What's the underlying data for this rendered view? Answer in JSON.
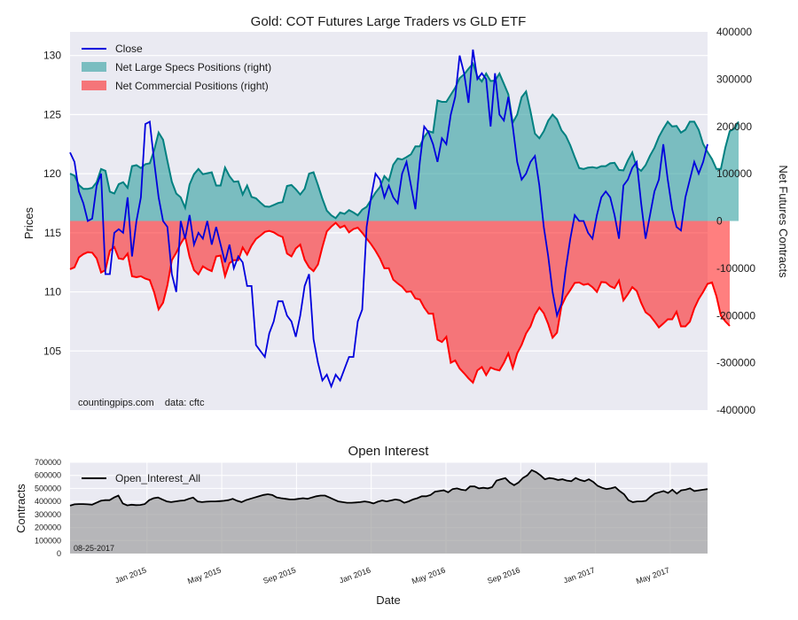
{
  "chart_data": [
    {
      "type": "line",
      "title": "Gold: COT Futures Large Traders vs GLD ETF",
      "ylabel": "Prices",
      "y2label": "Net Futures Contracts",
      "ylim": [
        100,
        132
      ],
      "y2lim": [
        -400000,
        400000
      ],
      "yticks": [
        105,
        110,
        115,
        120,
        125,
        130
      ],
      "y2ticks": [
        400000,
        300000,
        200000,
        100000,
        0,
        -100000,
        -200000,
        -300000,
        -400000
      ],
      "y2tick_labels": [
        "400000",
        "300000",
        "200000",
        "100000",
        "0",
        "-100000",
        "-200000",
        "-300000",
        "-400000"
      ],
      "legend_position": "top-left",
      "annotation": "countingpips.com    data: cftc",
      "series": [
        {
          "name": "Close",
          "color": "#0000dd",
          "axis": "left",
          "values": [
            121.8,
            121.0,
            118.5,
            117.5,
            116.0,
            116.2,
            119.0,
            120.0,
            111.5,
            111.5,
            115.0,
            115.3,
            115.0,
            118.0,
            113.0,
            116.0,
            118.0,
            124.2,
            124.4,
            121.0,
            118.0,
            116.0,
            115.5,
            111.5,
            110.0,
            116.0,
            114.5,
            116.5,
            114.0,
            115.0,
            114.5,
            116.0,
            114.0,
            115.5,
            114.0,
            112.5,
            114.0,
            112.0,
            113.0,
            112.5,
            110.5,
            110.5,
            105.5,
            105.0,
            104.5,
            106.5,
            107.5,
            109.2,
            109.2,
            108.0,
            107.5,
            106.2,
            108.0,
            110.5,
            111.5,
            106.0,
            104.0,
            102.5,
            103.0,
            102.0,
            103.0,
            102.5,
            103.5,
            104.5,
            104.5,
            107.5,
            108.5,
            115.5,
            118.0,
            120.0,
            119.5,
            118.0,
            119.0,
            118.0,
            117.5,
            120.0,
            121.0,
            119.0,
            117.0,
            121.0,
            124.0,
            123.5,
            122.5,
            121.0,
            123.0,
            122.5,
            125.0,
            126.5,
            130.0,
            128.5,
            126.0,
            130.5,
            128.0,
            128.5,
            128.0,
            124.0,
            128.5,
            125.0,
            124.5,
            126.5,
            124.0,
            121.0,
            119.5,
            120.0,
            121.0,
            121.5,
            119.0,
            115.5,
            113.0,
            110.0,
            108.0,
            109.0,
            112.0,
            114.5,
            116.5,
            116.0,
            116.0,
            115.0,
            114.5,
            116.5,
            118.0,
            118.5,
            118.0,
            116.5,
            114.5,
            119.0,
            119.5,
            120.5,
            121.0,
            117.5,
            114.5,
            116.5,
            118.5,
            119.5,
            122.5,
            119.5,
            117.0,
            115.5,
            115.2,
            118.0,
            119.5,
            121.0,
            120.0,
            121.0,
            122.5
          ]
        },
        {
          "name": "Net Large Specs Positions (right)",
          "color": "#2e9e9e",
          "axis": "right",
          "values": [
            100000,
            96000,
            76000,
            68000,
            68000,
            70000,
            82000,
            110000,
            106000,
            62000,
            58000,
            78000,
            82000,
            70000,
            116000,
            118000,
            112000,
            120000,
            122000,
            150000,
            187000,
            172000,
            127000,
            83000,
            58000,
            50000,
            28000,
            77000,
            99000,
            110000,
            99000,
            101000,
            103000,
            75000,
            75000,
            113000,
            95000,
            83000,
            84000,
            56000,
            75000,
            51000,
            48000,
            39000,
            31000,
            30000,
            34000,
            38000,
            40000,
            74000,
            76000,
            67000,
            56000,
            68000,
            100000,
            103000,
            76000,
            47000,
            22000,
            12000,
            6000,
            18000,
            15000,
            23000,
            18000,
            12000,
            24000,
            30000,
            45000,
            60000,
            72000,
            95000,
            85000,
            119000,
            132000,
            130000,
            135000,
            141000,
            158000,
            158000,
            178000,
            190000,
            187000,
            255000,
            252000,
            252000,
            267000,
            282000,
            302000,
            310000,
            322000,
            333000,
            306000,
            295000,
            312000,
            296000,
            297000,
            312000,
            290000,
            268000,
            208000,
            225000,
            262000,
            274000,
            232000,
            185000,
            175000,
            190000,
            212000,
            225000,
            215000,
            192000,
            180000,
            160000,
            135000,
            112000,
            110000,
            113000,
            114000,
            112000,
            116000,
            116000,
            122000,
            123000,
            108000,
            107000,
            128000,
            145000,
            113000,
            106000,
            118000,
            138000,
            155000,
            178000,
            195000,
            210000,
            200000,
            201000,
            187000,
            193000,
            210000,
            210000,
            193000,
            163000,
            146000,
            131000,
            110000,
            110000,
            155000,
            190000,
            195000,
            210000
          ]
        },
        {
          "name": "Net Commercial Positions (right)",
          "color": "#ff0000",
          "axis": "right",
          "values": [
            -102000,
            -98000,
            -77000,
            -70000,
            -66000,
            -67000,
            -79000,
            -109000,
            -104000,
            -63000,
            -55000,
            -79000,
            -81000,
            -69000,
            -117000,
            -119000,
            -117000,
            -122000,
            -125000,
            -151000,
            -187000,
            -173000,
            -136000,
            -83000,
            -67000,
            -48000,
            -33000,
            -76000,
            -104000,
            -113000,
            -96000,
            -102000,
            -106000,
            -75000,
            -73000,
            -117000,
            -89000,
            -83000,
            -83000,
            -56000,
            -71000,
            -52000,
            -38000,
            -31000,
            -23000,
            -21000,
            -24000,
            -30000,
            -34000,
            -69000,
            -75000,
            -58000,
            -50000,
            -82000,
            -98000,
            -106000,
            -92000,
            -55000,
            -22000,
            -12000,
            -4000,
            -14000,
            -10000,
            -24000,
            -17000,
            -14000,
            -25000,
            -37000,
            -49000,
            -63000,
            -79000,
            -100000,
            -100000,
            -124000,
            -132000,
            -139000,
            -150000,
            -149000,
            -164000,
            -166000,
            -183000,
            -196000,
            -196000,
            -251000,
            -256000,
            -245000,
            -300000,
            -295000,
            -312000,
            -322000,
            -333000,
            -342000,
            -316000,
            -309000,
            -326000,
            -310000,
            -314000,
            -316000,
            -300000,
            -280000,
            -311000,
            -280000,
            -262000,
            -238000,
            -223000,
            -198000,
            -183000,
            -195000,
            -218000,
            -247000,
            -236000,
            -180000,
            -160000,
            -146000,
            -131000,
            -130000,
            -135000,
            -133000,
            -140000,
            -150000,
            -129000,
            -130000,
            -138000,
            -142000,
            -126000,
            -168000,
            -155000,
            -140000,
            -148000,
            -173000,
            -193000,
            -200000,
            -212000,
            -225000,
            -217000,
            -208000,
            -208000,
            -192000,
            -223000,
            -223000,
            -213000,
            -185000,
            -165000,
            -150000,
            -133000,
            -130000,
            -159000,
            -200000,
            -212000,
            -222000
          ]
        }
      ]
    },
    {
      "type": "area",
      "title": "Open Interest",
      "xlabel": "Date",
      "ylabel": "Contracts",
      "ylim": [
        0,
        700000
      ],
      "yticks": [
        0,
        100000,
        200000,
        300000,
        400000,
        500000,
        600000,
        700000
      ],
      "ytick_labels": [
        "0",
        "100000",
        "200000",
        "300000",
        "400000",
        "500000",
        "600000",
        "700000"
      ],
      "xtick_labels": [
        "Jan 2015",
        "May 2015",
        "Sep 2015",
        "Jan 2016",
        "May 2016",
        "Sep 2016",
        "Jan 2017",
        "May 2017"
      ],
      "xtick_positions": [
        17.5,
        34.5,
        51.5,
        68.5,
        85.5,
        102.5,
        119.5,
        136.5
      ],
      "legend_position": "top-left",
      "annotation": "08-25-2017",
      "series": [
        {
          "name": "Open_Interest_All",
          "color": "#000000",
          "values": [
            368000,
            378000,
            380000,
            380000,
            378000,
            375000,
            390000,
            405000,
            410000,
            410000,
            430000,
            445000,
            385000,
            370000,
            375000,
            372000,
            373000,
            380000,
            410000,
            425000,
            430000,
            415000,
            400000,
            395000,
            400000,
            405000,
            408000,
            420000,
            430000,
            400000,
            395000,
            398000,
            400000,
            400000,
            402000,
            405000,
            410000,
            420000,
            405000,
            395000,
            410000,
            420000,
            430000,
            440000,
            450000,
            455000,
            450000,
            430000,
            425000,
            420000,
            415000,
            415000,
            420000,
            425000,
            420000,
            430000,
            440000,
            445000,
            445000,
            430000,
            415000,
            400000,
            395000,
            390000,
            390000,
            392000,
            395000,
            400000,
            395000,
            385000,
            398000,
            408000,
            400000,
            408000,
            415000,
            410000,
            390000,
            400000,
            415000,
            425000,
            440000,
            440000,
            450000,
            475000,
            480000,
            485000,
            470000,
            495000,
            500000,
            490000,
            485000,
            515000,
            515000,
            500000,
            505000,
            500000,
            510000,
            560000,
            570000,
            580000,
            545000,
            525000,
            545000,
            580000,
            600000,
            640000,
            625000,
            600000,
            570000,
            580000,
            575000,
            565000,
            570000,
            560000,
            555000,
            580000,
            565000,
            555000,
            570000,
            550000,
            520000,
            505000,
            495000,
            500000,
            510000,
            480000,
            455000,
            410000,
            395000,
            400000,
            400000,
            405000,
            435000,
            460000,
            470000,
            480000,
            465000,
            490000,
            460000,
            485000,
            490000,
            500000,
            480000,
            485000,
            490000,
            495000
          ]
        }
      ]
    }
  ]
}
